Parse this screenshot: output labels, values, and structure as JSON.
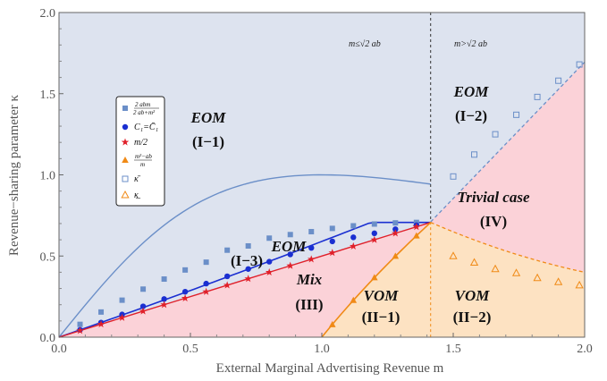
{
  "chart_data": {
    "type": "line",
    "title": "",
    "xlabel": "External Marginal Advertising Revenue m",
    "ylabel": "Revenue−sharing parameter κ",
    "xlim": [
      0,
      2
    ],
    "ylim": [
      0,
      2
    ],
    "xticks": [
      "0.0",
      "0.5",
      "1.0",
      "1.5",
      "2.0"
    ],
    "yticks": [
      "0.0",
      "0.5",
      "1.0",
      "1.5",
      "2.0"
    ],
    "threshold": {
      "x": 1.414,
      "left_label": "m≤√2 ab",
      "right_label": "m>√2 ab"
    },
    "colors": {
      "eom_region": "#dde3ef",
      "mix_region": "#fbd2d8",
      "vom_region": "#fde2c2",
      "series1": "#6b8fc8",
      "series2": "#1a2fd1",
      "series3": "#e0202a",
      "series4": "#f08a16"
    },
    "series": [
      {
        "name": "2abm / (2ab+m²)",
        "marker": "filled-square",
        "x": [
          0.08,
          0.16,
          0.24,
          0.32,
          0.4,
          0.48,
          0.56,
          0.64,
          0.72,
          0.8,
          0.88,
          0.96,
          1.04,
          1.12,
          1.2,
          1.28,
          1.36
        ],
        "y": [
          0.079,
          0.155,
          0.228,
          0.296,
          0.358,
          0.414,
          0.462,
          0.536,
          0.562,
          0.61,
          0.632,
          0.65,
          0.67,
          0.686,
          0.697,
          0.704,
          0.707
        ]
      },
      {
        "name": "C₁=C̄₁",
        "marker": "filled-circle",
        "x": [
          0.08,
          0.16,
          0.24,
          0.32,
          0.4,
          0.48,
          0.56,
          0.64,
          0.72,
          0.8,
          0.88,
          0.96,
          1.04,
          1.12,
          1.2,
          1.28,
          1.36
        ],
        "y": [
          0.045,
          0.09,
          0.14,
          0.19,
          0.235,
          0.28,
          0.33,
          0.375,
          0.42,
          0.465,
          0.51,
          0.55,
          0.59,
          0.615,
          0.64,
          0.665,
          0.69
        ]
      },
      {
        "name": "m/2",
        "marker": "star",
        "x": [
          0.08,
          0.16,
          0.24,
          0.32,
          0.4,
          0.48,
          0.56,
          0.64,
          0.72,
          0.8,
          0.88,
          0.96,
          1.04,
          1.12,
          1.2,
          1.28,
          1.36
        ],
        "y": [
          0.04,
          0.08,
          0.12,
          0.16,
          0.2,
          0.24,
          0.28,
          0.32,
          0.36,
          0.4,
          0.44,
          0.48,
          0.52,
          0.56,
          0.6,
          0.64,
          0.68
        ]
      },
      {
        "name": "(m²−ab)/m",
        "marker": "filled-triangle",
        "x": [
          1.04,
          1.12,
          1.2,
          1.28,
          1.36
        ],
        "y": [
          0.078,
          0.227,
          0.367,
          0.499,
          0.625
        ]
      },
      {
        "name": "κ̄",
        "marker": "open-square",
        "x": [
          1.5,
          1.58,
          1.66,
          1.74,
          1.82,
          1.9,
          1.98
        ],
        "y": [
          0.99,
          1.125,
          1.25,
          1.37,
          1.48,
          1.58,
          1.68
        ]
      },
      {
        "name": "κ̲",
        "marker": "open-triangle",
        "x": [
          1.5,
          1.58,
          1.66,
          1.74,
          1.82,
          1.9,
          1.98
        ],
        "y": [
          0.5,
          0.46,
          0.42,
          0.395,
          0.365,
          0.34,
          0.32
        ]
      }
    ],
    "legend": {
      "placement": "left",
      "entries": [
        {
          "marker": "filled-square",
          "color": "#6b8fc8",
          "text_top": "2 abm",
          "text_bottom": "2 ab+m²"
        },
        {
          "marker": "filled-circle",
          "color": "#1a2fd1",
          "text": "C₁=C̄₁"
        },
        {
          "marker": "star",
          "color": "#e0202a",
          "text": "m/2"
        },
        {
          "marker": "filled-triangle",
          "color": "#f08a16",
          "text_top": "m²−ab",
          "text_bottom": "m"
        },
        {
          "marker": "open-square",
          "color": "#6b8fc8",
          "text": "κ̄"
        },
        {
          "marker": "open-triangle",
          "color": "#f08a16",
          "text": "κ̲"
        }
      ]
    },
    "annotations": [
      {
        "name": "eom-i1",
        "lines": [
          "EOM",
          "(I−1)"
        ],
        "italic_first": true
      },
      {
        "name": "eom-i2",
        "lines": [
          "EOM",
          "(I−2)"
        ],
        "italic_first": true
      },
      {
        "name": "eom-i3",
        "lines": [
          "EOM",
          "(I−3)"
        ],
        "italic_first": true
      },
      {
        "name": "mix-iii",
        "lines": [
          "Mix",
          "(III)"
        ],
        "italic_first": true
      },
      {
        "name": "vom-ii1",
        "lines": [
          "VOM",
          "(II−1)"
        ],
        "italic_first": true
      },
      {
        "name": "vom-ii2",
        "lines": [
          "VOM",
          "(II−2)"
        ],
        "italic_first": true
      },
      {
        "name": "trivial-iv",
        "lines": [
          "Trivial case",
          "(IV)"
        ],
        "italic_first": true
      }
    ]
  }
}
